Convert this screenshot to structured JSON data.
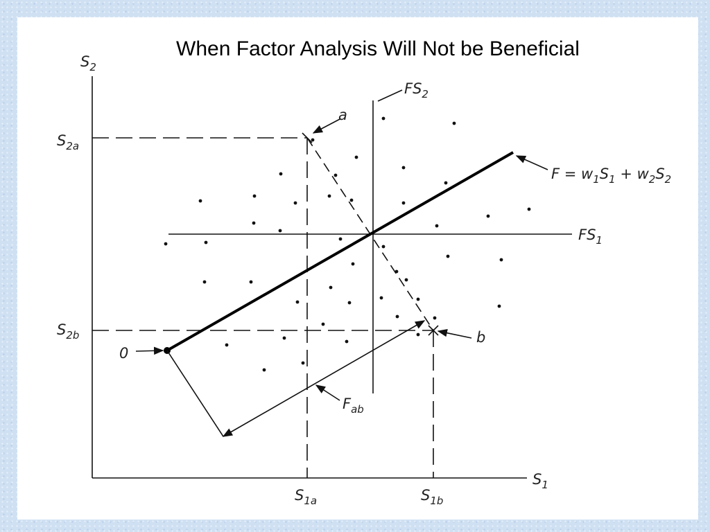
{
  "title": "When Factor Analysis Will Not be Beneficial",
  "labels": {
    "s2": [
      {
        "text": "S"
      },
      {
        "text": "2",
        "sub": true
      }
    ],
    "s2a": [
      {
        "text": "S"
      },
      {
        "text": "2a",
        "sub": true
      }
    ],
    "s2b": [
      {
        "text": "S"
      },
      {
        "text": "2b",
        "sub": true
      }
    ],
    "s1": [
      {
        "text": "S"
      },
      {
        "text": "1",
        "sub": true
      }
    ],
    "s1a": [
      {
        "text": "S"
      },
      {
        "text": "1a",
        "sub": true
      }
    ],
    "s1b": [
      {
        "text": "S"
      },
      {
        "text": "1b",
        "sub": true
      }
    ],
    "fs2": [
      {
        "text": "FS"
      },
      {
        "text": "2",
        "sub": true
      }
    ],
    "fs1": [
      {
        "text": "FS"
      },
      {
        "text": "1",
        "sub": true
      }
    ],
    "a": [
      {
        "text": "a"
      }
    ],
    "b": [
      {
        "text": "b"
      }
    ],
    "origin": [
      {
        "text": "0"
      }
    ],
    "fab": [
      {
        "text": "F"
      },
      {
        "text": "ab",
        "sub": true
      }
    ],
    "formula": [
      {
        "text": "F = w"
      },
      {
        "text": "1",
        "sub": true
      },
      {
        "text": "S"
      },
      {
        "text": "1",
        "sub": true
      },
      {
        "text": " + w"
      },
      {
        "text": "2",
        "sub": true
      },
      {
        "text": "S"
      },
      {
        "text": "2",
        "sub": true
      }
    ]
  }
}
